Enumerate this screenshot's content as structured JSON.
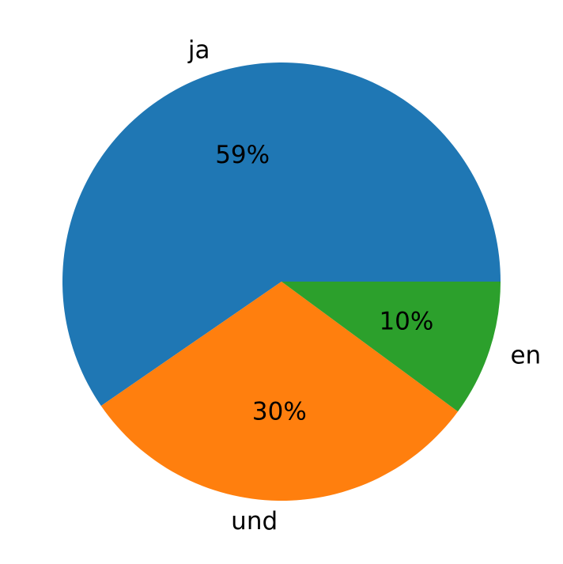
{
  "chart_data": {
    "type": "pie",
    "categories": [
      "ja",
      "und",
      "en"
    ],
    "values": [
      59,
      30,
      10
    ],
    "value_labels": [
      "59%",
      "30%",
      "10%"
    ],
    "colors": [
      "#1f77b4",
      "#ff7f0e",
      "#2ca02c"
    ]
  }
}
